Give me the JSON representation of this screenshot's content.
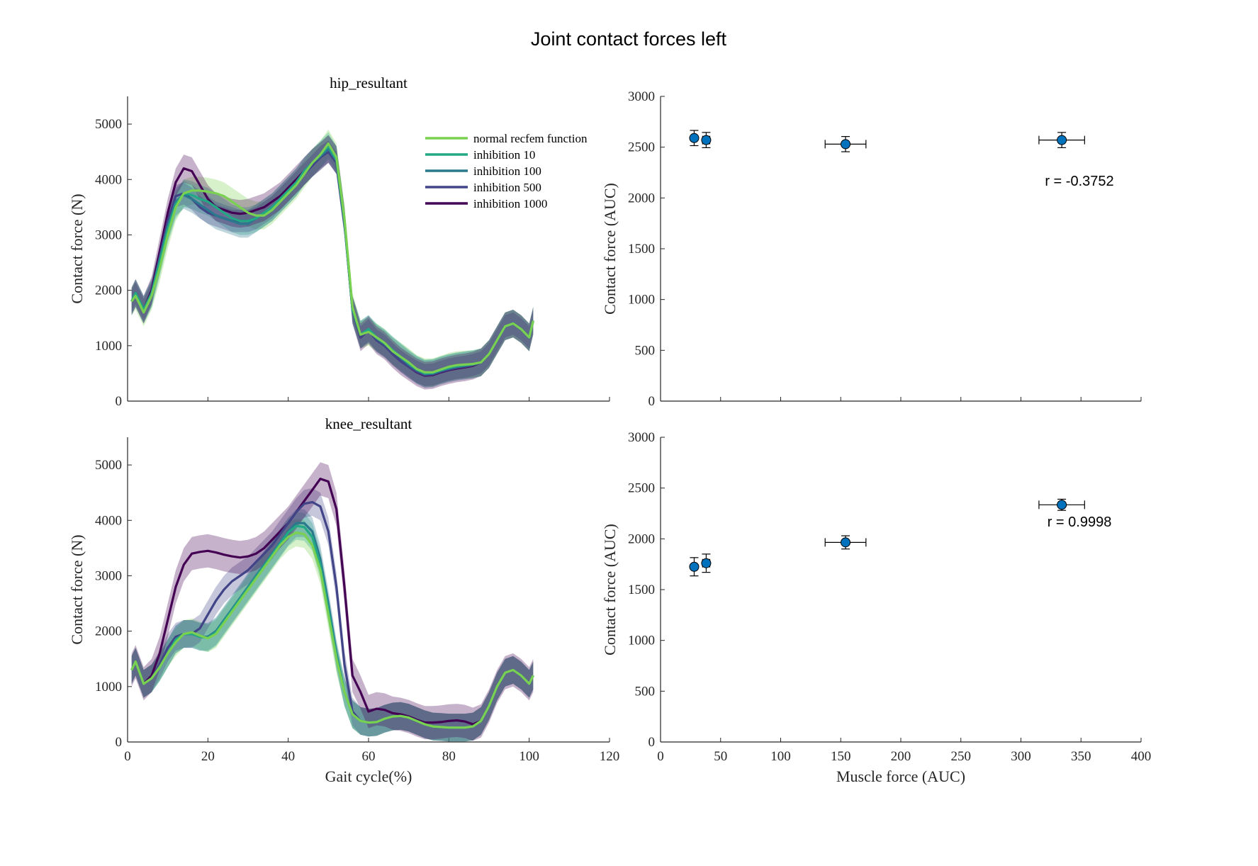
{
  "figure_title": "Joint contact forces left",
  "colors": {
    "normal recfem function": "#7ad151",
    "inhibition 10": "#22a884",
    "inhibition 100": "#2a788e",
    "inhibition 500": "#414487",
    "inhibition 1000": "#440154",
    "scatter_marker": "#0072bd",
    "axis": "#262626"
  },
  "chart_data": [
    {
      "type": "line",
      "title": "hip_resultant",
      "xlabel": "",
      "ylabel": "Contact force (N)",
      "xlim": [
        0,
        120
      ],
      "ylim": [
        0,
        5500
      ],
      "xticks": [
        0,
        20,
        40,
        60,
        80,
        100,
        120
      ],
      "yticks": [
        0,
        1000,
        2000,
        3000,
        4000,
        5000
      ],
      "show_x_tick_labels": false,
      "legend_placement": "top-right",
      "legend": [
        "normal recfem function",
        "inhibition 10",
        "inhibition 100",
        "inhibition 500",
        "inhibition 1000"
      ],
      "x": [
        1,
        2,
        4,
        6,
        8,
        10,
        12,
        14,
        16,
        18,
        20,
        22,
        24,
        26,
        28,
        30,
        32,
        34,
        36,
        38,
        40,
        42,
        44,
        46,
        48,
        50,
        52,
        54,
        56,
        58,
        60,
        62,
        64,
        66,
        68,
        70,
        72,
        74,
        76,
        78,
        80,
        82,
        84,
        86,
        88,
        90,
        92,
        94,
        96,
        98,
        100,
        101
      ],
      "series": [
        {
          "name": "normal recfem function",
          "band": 250,
          "values": [
            1800,
            1900,
            1600,
            1900,
            2400,
            3000,
            3500,
            3750,
            3800,
            3800,
            3780,
            3750,
            3700,
            3600,
            3500,
            3400,
            3350,
            3350,
            3450,
            3600,
            3750,
            3900,
            4100,
            4300,
            4450,
            4650,
            4400,
            3300,
            1700,
            1200,
            1250,
            1150,
            1050,
            900,
            800,
            700,
            580,
            520,
            520,
            570,
            620,
            650,
            660,
            670,
            700,
            850,
            1100,
            1350,
            1400,
            1300,
            1150,
            1450
          ]
        },
        {
          "name": "inhibition 10",
          "band": 250,
          "values": [
            1800,
            1950,
            1650,
            1950,
            2500,
            3100,
            3550,
            3750,
            3720,
            3650,
            3600,
            3500,
            3400,
            3300,
            3250,
            3250,
            3300,
            3400,
            3500,
            3650,
            3800,
            3950,
            4150,
            4300,
            4450,
            4600,
            4350,
            3250,
            1650,
            1200,
            1300,
            1150,
            1050,
            920,
            800,
            680,
            570,
            500,
            510,
            560,
            600,
            630,
            650,
            670,
            700,
            850,
            1100,
            1350,
            1400,
            1300,
            1150,
            1450
          ]
        },
        {
          "name": "inhibition 100",
          "band": 250,
          "values": [
            1800,
            1950,
            1650,
            1950,
            2550,
            3150,
            3600,
            3720,
            3650,
            3550,
            3450,
            3350,
            3300,
            3250,
            3200,
            3200,
            3300,
            3400,
            3500,
            3650,
            3800,
            3950,
            4150,
            4300,
            4420,
            4550,
            4350,
            3250,
            1650,
            1200,
            1300,
            1130,
            1030,
            900,
            780,
            660,
            560,
            490,
            500,
            550,
            590,
            620,
            640,
            660,
            700,
            850,
            1100,
            1350,
            1400,
            1300,
            1150,
            1450
          ]
        },
        {
          "name": "inhibition 500",
          "band": 200,
          "values": [
            1800,
            1950,
            1650,
            1950,
            2600,
            3250,
            3700,
            3750,
            3650,
            3500,
            3400,
            3350,
            3300,
            3250,
            3250,
            3250,
            3300,
            3400,
            3500,
            3650,
            3800,
            3950,
            4100,
            4250,
            4400,
            4500,
            4300,
            3200,
            1650,
            1150,
            1280,
            1100,
            1000,
            850,
            720,
            620,
            530,
            470,
            480,
            530,
            570,
            600,
            620,
            650,
            700,
            850,
            1100,
            1350,
            1400,
            1300,
            1150,
            1450
          ]
        },
        {
          "name": "inhibition 1000",
          "band": 250,
          "values": [
            1800,
            1950,
            1650,
            2000,
            2700,
            3400,
            3950,
            4200,
            4150,
            3900,
            3650,
            3500,
            3450,
            3400,
            3380,
            3400,
            3450,
            3500,
            3600,
            3700,
            3850,
            4000,
            4150,
            4300,
            4420,
            4550,
            4350,
            3250,
            1650,
            1150,
            1280,
            1100,
            1000,
            850,
            720,
            620,
            520,
            460,
            470,
            520,
            560,
            590,
            610,
            640,
            700,
            850,
            1100,
            1350,
            1400,
            1300,
            1150,
            1450
          ]
        }
      ]
    },
    {
      "type": "scatter",
      "title": "",
      "xlabel": "",
      "ylabel": "Contact force (AUC)",
      "xlim": [
        0,
        400
      ],
      "ylim": [
        0,
        3000
      ],
      "xticks": [
        0,
        50,
        100,
        150,
        200,
        250,
        300,
        350,
        400
      ],
      "yticks": [
        0,
        500,
        1000,
        1500,
        2000,
        2500,
        3000
      ],
      "show_x_tick_labels": false,
      "annotation": "r = -0.3752",
      "points": [
        {
          "x": 28,
          "y": 2590,
          "xerr": 0,
          "yerr": 75
        },
        {
          "x": 38,
          "y": 2570,
          "xerr": 3,
          "yerr": 75
        },
        {
          "x": 154,
          "y": 2530,
          "xerr": 17,
          "yerr": 75
        },
        {
          "x": 334,
          "y": 2570,
          "xerr": 19,
          "yerr": 75
        }
      ]
    },
    {
      "type": "line",
      "title": "knee_resultant",
      "xlabel": "Gait cycle(%)",
      "ylabel": "Contact force (N)",
      "xlim": [
        0,
        120
      ],
      "ylim": [
        0,
        5500
      ],
      "xticks": [
        0,
        20,
        40,
        60,
        80,
        100,
        120
      ],
      "yticks": [
        0,
        1000,
        2000,
        3000,
        4000,
        5000
      ],
      "show_x_tick_labels": true,
      "legend": [],
      "x": [
        1,
        2,
        4,
        6,
        8,
        10,
        12,
        14,
        16,
        18,
        20,
        22,
        24,
        26,
        28,
        30,
        32,
        34,
        36,
        38,
        40,
        42,
        44,
        46,
        48,
        50,
        52,
        54,
        56,
        58,
        60,
        62,
        64,
        66,
        68,
        70,
        72,
        74,
        76,
        78,
        80,
        82,
        84,
        86,
        88,
        90,
        92,
        94,
        96,
        98,
        100,
        101
      ],
      "series": [
        {
          "name": "normal recfem function",
          "band": 250,
          "values": [
            1300,
            1450,
            1050,
            1150,
            1350,
            1600,
            1800,
            1950,
            1980,
            1920,
            1870,
            1950,
            2150,
            2350,
            2550,
            2750,
            2950,
            3150,
            3350,
            3550,
            3700,
            3780,
            3750,
            3550,
            3100,
            2300,
            1500,
            900,
            500,
            380,
            350,
            360,
            420,
            460,
            470,
            440,
            380,
            320,
            280,
            270,
            260,
            260,
            260,
            280,
            380,
            650,
            1000,
            1250,
            1300,
            1200,
            1050,
            1200
          ]
        },
        {
          "name": "inhibition 10",
          "band": 250,
          "values": [
            1300,
            1450,
            1050,
            1150,
            1350,
            1600,
            1850,
            1950,
            1950,
            1900,
            1880,
            1980,
            2180,
            2380,
            2580,
            2780,
            2980,
            3180,
            3380,
            3580,
            3780,
            3900,
            3880,
            3700,
            3200,
            2400,
            1550,
            900,
            500,
            380,
            350,
            360,
            420,
            460,
            470,
            440,
            380,
            320,
            280,
            270,
            260,
            260,
            260,
            280,
            380,
            650,
            1000,
            1250,
            1300,
            1200,
            1050,
            1200
          ]
        },
        {
          "name": "inhibition 100",
          "band": 250,
          "values": [
            1300,
            1450,
            1050,
            1150,
            1350,
            1600,
            1850,
            1950,
            1950,
            1900,
            1900,
            2000,
            2200,
            2400,
            2600,
            2800,
            3000,
            3200,
            3400,
            3600,
            3800,
            3950,
            3950,
            3800,
            3300,
            2500,
            1600,
            900,
            500,
            380,
            350,
            360,
            420,
            460,
            470,
            440,
            380,
            320,
            280,
            270,
            260,
            260,
            260,
            280,
            380,
            650,
            1000,
            1250,
            1300,
            1200,
            1050,
            1200
          ]
        },
        {
          "name": "inhibition 500",
          "band": 250,
          "values": [
            1300,
            1450,
            1050,
            1150,
            1400,
            1700,
            1900,
            1950,
            1950,
            2050,
            2300,
            2550,
            2750,
            2900,
            3000,
            3100,
            3250,
            3400,
            3550,
            3750,
            3950,
            4150,
            4300,
            4330,
            4250,
            3800,
            2800,
            1400,
            550,
            380,
            350,
            360,
            420,
            460,
            470,
            440,
            380,
            320,
            280,
            270,
            260,
            260,
            260,
            280,
            380,
            650,
            1000,
            1250,
            1300,
            1200,
            1050,
            1200
          ]
        },
        {
          "name": "inhibition 1000",
          "band": 300,
          "values": [
            1300,
            1450,
            1050,
            1200,
            1600,
            2200,
            2800,
            3200,
            3400,
            3430,
            3450,
            3420,
            3380,
            3350,
            3330,
            3350,
            3400,
            3500,
            3650,
            3800,
            3950,
            4150,
            4350,
            4550,
            4750,
            4700,
            4200,
            2800,
            1200,
            900,
            550,
            600,
            580,
            520,
            500,
            460,
            400,
            350,
            350,
            360,
            380,
            390,
            370,
            320,
            380,
            650,
            1000,
            1250,
            1300,
            1200,
            1050,
            1200
          ]
        }
      ]
    },
    {
      "type": "scatter",
      "title": "",
      "xlabel": "Muscle force (AUC)",
      "ylabel": "Contact force (AUC)",
      "xlim": [
        0,
        400
      ],
      "ylim": [
        0,
        3000
      ],
      "xticks": [
        0,
        50,
        100,
        150,
        200,
        250,
        300,
        350,
        400
      ],
      "yticks": [
        0,
        500,
        1000,
        1500,
        2000,
        2500,
        3000
      ],
      "show_x_tick_labels": true,
      "annotation": "r = 0.9998",
      "points": [
        {
          "x": 28,
          "y": 1725,
          "xerr": 0,
          "yerr": 90
        },
        {
          "x": 38,
          "y": 1760,
          "xerr": 3,
          "yerr": 90
        },
        {
          "x": 154,
          "y": 1965,
          "xerr": 17,
          "yerr": 65
        },
        {
          "x": 334,
          "y": 2335,
          "xerr": 19,
          "yerr": 55
        }
      ]
    }
  ]
}
